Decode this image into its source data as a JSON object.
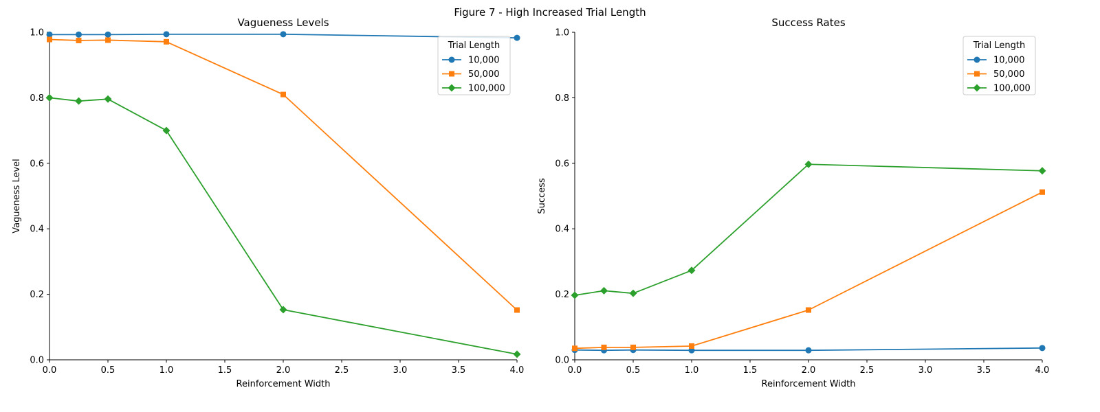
{
  "figure": {
    "title": "Figure 7 - High Increased Trial Length"
  },
  "chart_data": [
    {
      "type": "line",
      "title": "Vagueness Levels",
      "xlabel": "Reinforcement Width",
      "ylabel": "Vagueness Level",
      "xlim": [
        0,
        4
      ],
      "ylim": [
        0,
        1
      ],
      "xticks": [
        "0.0",
        "0.5",
        "1.0",
        "1.5",
        "2.0",
        "2.5",
        "3.0",
        "3.5",
        "4.0"
      ],
      "yticks": [
        "0.0",
        "0.2",
        "0.4",
        "0.6",
        "0.8",
        "1.0"
      ],
      "grid": false,
      "legend": {
        "title": "Trial Length",
        "position": "top-right"
      },
      "x": [
        0,
        0.25,
        0.5,
        1,
        2,
        4
      ],
      "series": [
        {
          "name": "10,000",
          "color": "#1f77b4",
          "marker": "circle",
          "values": [
            0.993,
            0.993,
            0.993,
            0.994,
            0.994,
            0.983
          ]
        },
        {
          "name": "50,000",
          "color": "#ff7f0e",
          "marker": "square",
          "values": [
            0.978,
            0.975,
            0.976,
            0.971,
            0.81,
            0.152
          ]
        },
        {
          "name": "100,000",
          "color": "#2ca02c",
          "marker": "diamond",
          "values": [
            0.8,
            0.79,
            0.796,
            0.7,
            0.153,
            0.017
          ]
        }
      ]
    },
    {
      "type": "line",
      "title": "Success Rates",
      "xlabel": "Reinforcement Width",
      "ylabel": "Success",
      "xlim": [
        0,
        4
      ],
      "ylim": [
        0,
        1
      ],
      "xticks": [
        "0.0",
        "0.5",
        "1.0",
        "1.5",
        "2.0",
        "2.5",
        "3.0",
        "3.5",
        "4.0"
      ],
      "yticks": [
        "0.0",
        "0.2",
        "0.4",
        "0.6",
        "0.8",
        "1.0"
      ],
      "grid": false,
      "legend": {
        "title": "Trial Length",
        "position": "top-right"
      },
      "x": [
        0,
        0.25,
        0.5,
        1,
        2,
        4
      ],
      "series": [
        {
          "name": "10,000",
          "color": "#1f77b4",
          "marker": "circle",
          "values": [
            0.03,
            0.029,
            0.03,
            0.029,
            0.029,
            0.036
          ]
        },
        {
          "name": "50,000",
          "color": "#ff7f0e",
          "marker": "square",
          "values": [
            0.035,
            0.038,
            0.038,
            0.042,
            0.152,
            0.512
          ]
        },
        {
          "name": "100,000",
          "color": "#2ca02c",
          "marker": "diamond",
          "values": [
            0.197,
            0.211,
            0.203,
            0.273,
            0.597,
            0.577
          ]
        }
      ]
    }
  ]
}
